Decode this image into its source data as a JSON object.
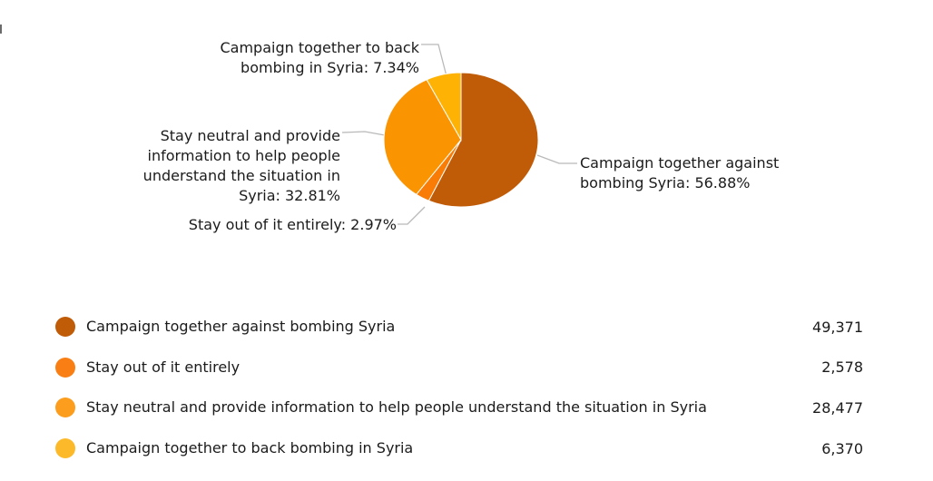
{
  "page": {
    "background_color": "#ffffff",
    "text_color": "#1b1b1b"
  },
  "chart_data": {
    "type": "pie",
    "title": "",
    "legend_position": "bottom",
    "grid": false,
    "leader_line_color": "#b9b9b9",
    "start_angle_deg": 0,
    "direction": "clockwise",
    "segments": [
      {
        "label": "Campaign together against bombing Syria",
        "percent": 56.88,
        "count": "49,371",
        "color": "#c05b07",
        "dot_color": "#c05b07",
        "callout": "Campaign together against bombing Syria: 56.88%"
      },
      {
        "label": "Stay out of it entirely",
        "percent": 2.97,
        "count": "2,578",
        "color": "#f87c06",
        "dot_color": "#f97f15",
        "callout": "Stay out of it entirely: 2.97%"
      },
      {
        "label": "Stay neutral and provide information to help people understand the situation in Syria",
        "percent": 32.81,
        "count": "28,477",
        "color": "#fb9401",
        "dot_color": "#fc9d1e",
        "callout": "Stay neutral and provide information to help people understand the situation in Syria: 32.81%"
      },
      {
        "label": "Campaign together to back bombing in Syria",
        "percent": 7.34,
        "count": "6,370",
        "color": "#feb204",
        "dot_color": "#fcba2b",
        "callout": "Campaign together to back bombing in Syria: 7.34%"
      }
    ]
  }
}
